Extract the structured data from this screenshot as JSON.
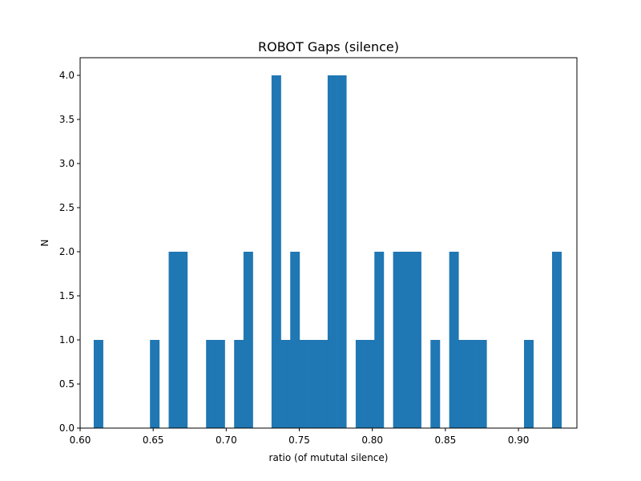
{
  "chart_data": {
    "type": "bar",
    "title": "ROBOT Gaps (silence)",
    "xlabel": "ratio (of mututal silence)",
    "ylabel": "N",
    "xlim": [
      0.6,
      0.94
    ],
    "ylim": [
      0,
      4.2
    ],
    "bar_color": "#1f77b4",
    "bin_width": 0.0064,
    "x_ticks": [
      {
        "value": 0.6,
        "label": "0.60"
      },
      {
        "value": 0.65,
        "label": "0.65"
      },
      {
        "value": 0.7,
        "label": "0.70"
      },
      {
        "value": 0.75,
        "label": "0.75"
      },
      {
        "value": 0.8,
        "label": "0.80"
      },
      {
        "value": 0.85,
        "label": "0.85"
      },
      {
        "value": 0.9,
        "label": "0.90"
      }
    ],
    "y_ticks": [
      {
        "value": 0.0,
        "label": "0.0"
      },
      {
        "value": 0.5,
        "label": "0.5"
      },
      {
        "value": 1.0,
        "label": "1.0"
      },
      {
        "value": 1.5,
        "label": "1.5"
      },
      {
        "value": 2.0,
        "label": "2.0"
      },
      {
        "value": 2.5,
        "label": "2.5"
      },
      {
        "value": 3.0,
        "label": "3.0"
      },
      {
        "value": 3.5,
        "label": "3.5"
      },
      {
        "value": 4.0,
        "label": "4.0"
      }
    ],
    "bins": [
      {
        "x": 0.6093,
        "count": 1
      },
      {
        "x": 0.6478,
        "count": 1
      },
      {
        "x": 0.6606,
        "count": 2
      },
      {
        "x": 0.667,
        "count": 2
      },
      {
        "x": 0.6862,
        "count": 1
      },
      {
        "x": 0.6926,
        "count": 1
      },
      {
        "x": 0.7054,
        "count": 1
      },
      {
        "x": 0.7118,
        "count": 2
      },
      {
        "x": 0.731,
        "count": 4
      },
      {
        "x": 0.7374,
        "count": 1
      },
      {
        "x": 0.7438,
        "count": 2
      },
      {
        "x": 0.7502,
        "count": 1
      },
      {
        "x": 0.7566,
        "count": 1
      },
      {
        "x": 0.763,
        "count": 1
      },
      {
        "x": 0.7694,
        "count": 4
      },
      {
        "x": 0.7758,
        "count": 4
      },
      {
        "x": 0.7886,
        "count": 1
      },
      {
        "x": 0.795,
        "count": 1
      },
      {
        "x": 0.8014,
        "count": 2
      },
      {
        "x": 0.8142,
        "count": 2
      },
      {
        "x": 0.8206,
        "count": 2
      },
      {
        "x": 0.827,
        "count": 2
      },
      {
        "x": 0.8398,
        "count": 1
      },
      {
        "x": 0.8526,
        "count": 2
      },
      {
        "x": 0.859,
        "count": 1
      },
      {
        "x": 0.8654,
        "count": 1
      },
      {
        "x": 0.8718,
        "count": 1
      },
      {
        "x": 0.9038,
        "count": 1
      },
      {
        "x": 0.923,
        "count": 2
      }
    ]
  }
}
